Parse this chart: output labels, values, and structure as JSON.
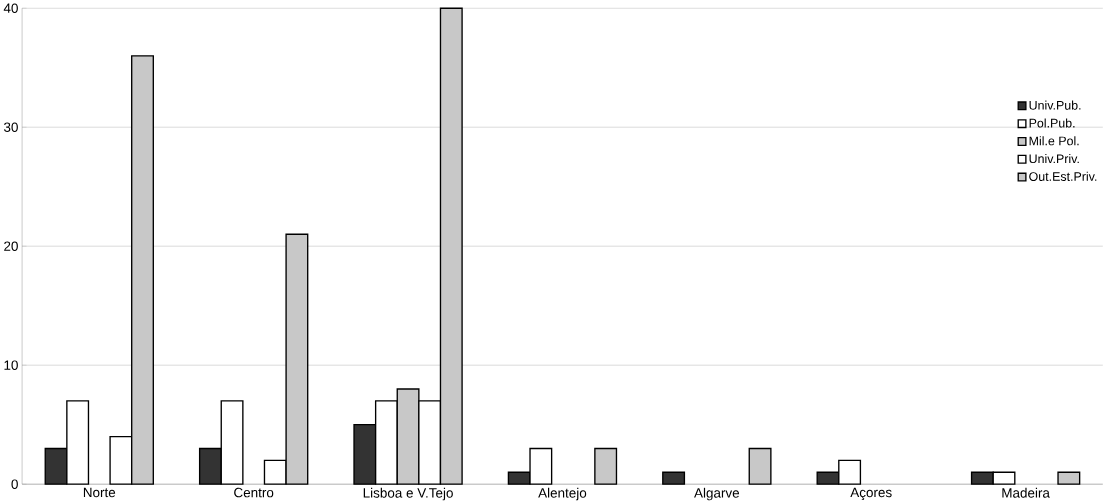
{
  "chart_data": {
    "type": "bar",
    "categories": [
      "Norte",
      "Centro",
      "Lisboa e V.Tejo",
      "Alentejo",
      "Algarve",
      "Açores",
      "Madeira"
    ],
    "series": [
      {
        "name": "Univ.Pub.",
        "color": "#333333",
        "values": [
          3,
          3,
          5,
          1,
          1,
          1,
          1
        ]
      },
      {
        "name": "Pol.Pub.",
        "color": "#ffffff",
        "values": [
          7,
          7,
          7,
          3,
          null,
          2,
          1
        ]
      },
      {
        "name": "Mil.e Pol.",
        "color": "#c8c8c8",
        "values": [
          null,
          null,
          8,
          null,
          null,
          null,
          null
        ]
      },
      {
        "name": "Univ.Priv.",
        "color": "#ffffff",
        "values": [
          4,
          2,
          7,
          null,
          null,
          null,
          null
        ]
      },
      {
        "name": "Out.Est.Priv.",
        "color": "#c8c8c8",
        "values": [
          36,
          21,
          40,
          3,
          3,
          null,
          1
        ]
      }
    ],
    "ylim": [
      0,
      40
    ],
    "yticks": [
      0,
      10,
      20,
      30,
      40
    ],
    "grid": "y",
    "legend": "right"
  }
}
